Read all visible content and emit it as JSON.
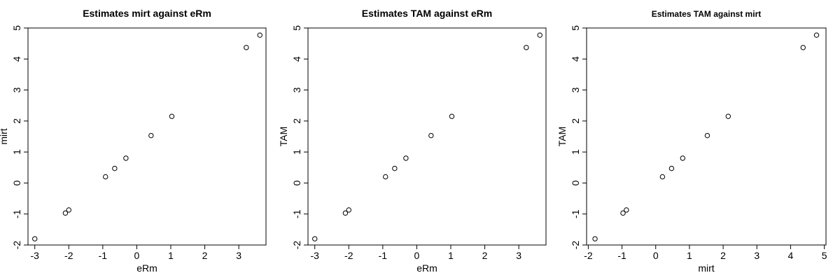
{
  "chart_data": [
    {
      "type": "scatter",
      "title": "Estimates mirt against eRm",
      "xlabel": "eRm",
      "ylabel": "mirt",
      "xlim": [
        -3.2,
        3.8
      ],
      "ylim": [
        -2,
        5
      ],
      "xticks": [
        -3,
        -2,
        -1,
        0,
        1,
        2,
        3
      ],
      "yticks": [
        -2,
        -1,
        0,
        1,
        2,
        3,
        4,
        5
      ],
      "grid": false,
      "points": [
        {
          "x": -3.0,
          "y": -1.8
        },
        {
          "x": -2.1,
          "y": -0.97
        },
        {
          "x": -2.0,
          "y": -0.87
        },
        {
          "x": -0.92,
          "y": 0.2
        },
        {
          "x": -0.65,
          "y": 0.47
        },
        {
          "x": -0.32,
          "y": 0.8
        },
        {
          "x": 0.42,
          "y": 1.53
        },
        {
          "x": 1.03,
          "y": 2.15
        },
        {
          "x": 3.22,
          "y": 4.37
        },
        {
          "x": 3.62,
          "y": 4.77
        }
      ]
    },
    {
      "type": "scatter",
      "title": "Estimates TAM against eRm",
      "xlabel": "eRm",
      "ylabel": "TAM",
      "xlim": [
        -3.2,
        3.8
      ],
      "ylim": [
        -2,
        5
      ],
      "xticks": [
        -3,
        -2,
        -1,
        0,
        1,
        2,
        3
      ],
      "yticks": [
        -2,
        -1,
        0,
        1,
        2,
        3,
        4,
        5
      ],
      "grid": false,
      "points": [
        {
          "x": -3.0,
          "y": -1.8
        },
        {
          "x": -2.1,
          "y": -0.97
        },
        {
          "x": -2.0,
          "y": -0.87
        },
        {
          "x": -0.92,
          "y": 0.2
        },
        {
          "x": -0.65,
          "y": 0.47
        },
        {
          "x": -0.32,
          "y": 0.8
        },
        {
          "x": 0.42,
          "y": 1.53
        },
        {
          "x": 1.03,
          "y": 2.15
        },
        {
          "x": 3.22,
          "y": 4.37
        },
        {
          "x": 3.62,
          "y": 4.77
        }
      ]
    },
    {
      "type": "scatter",
      "title": "Estimates TAM against mirt",
      "xlabel": "mirt",
      "ylabel": "TAM",
      "xlim": [
        -2.05,
        5.05
      ],
      "ylim": [
        -2,
        5
      ],
      "xticks": [
        -2,
        -1,
        0,
        1,
        2,
        3,
        4,
        5
      ],
      "yticks": [
        -2,
        -1,
        0,
        1,
        2,
        3,
        4,
        5
      ],
      "grid": false,
      "points": [
        {
          "x": -1.8,
          "y": -1.8
        },
        {
          "x": -0.97,
          "y": -0.97
        },
        {
          "x": -0.87,
          "y": -0.87
        },
        {
          "x": 0.2,
          "y": 0.2
        },
        {
          "x": 0.47,
          "y": 0.47
        },
        {
          "x": 0.8,
          "y": 0.8
        },
        {
          "x": 1.53,
          "y": 1.53
        },
        {
          "x": 2.15,
          "y": 2.15
        },
        {
          "x": 4.37,
          "y": 4.37
        },
        {
          "x": 4.77,
          "y": 4.77
        }
      ]
    }
  ]
}
